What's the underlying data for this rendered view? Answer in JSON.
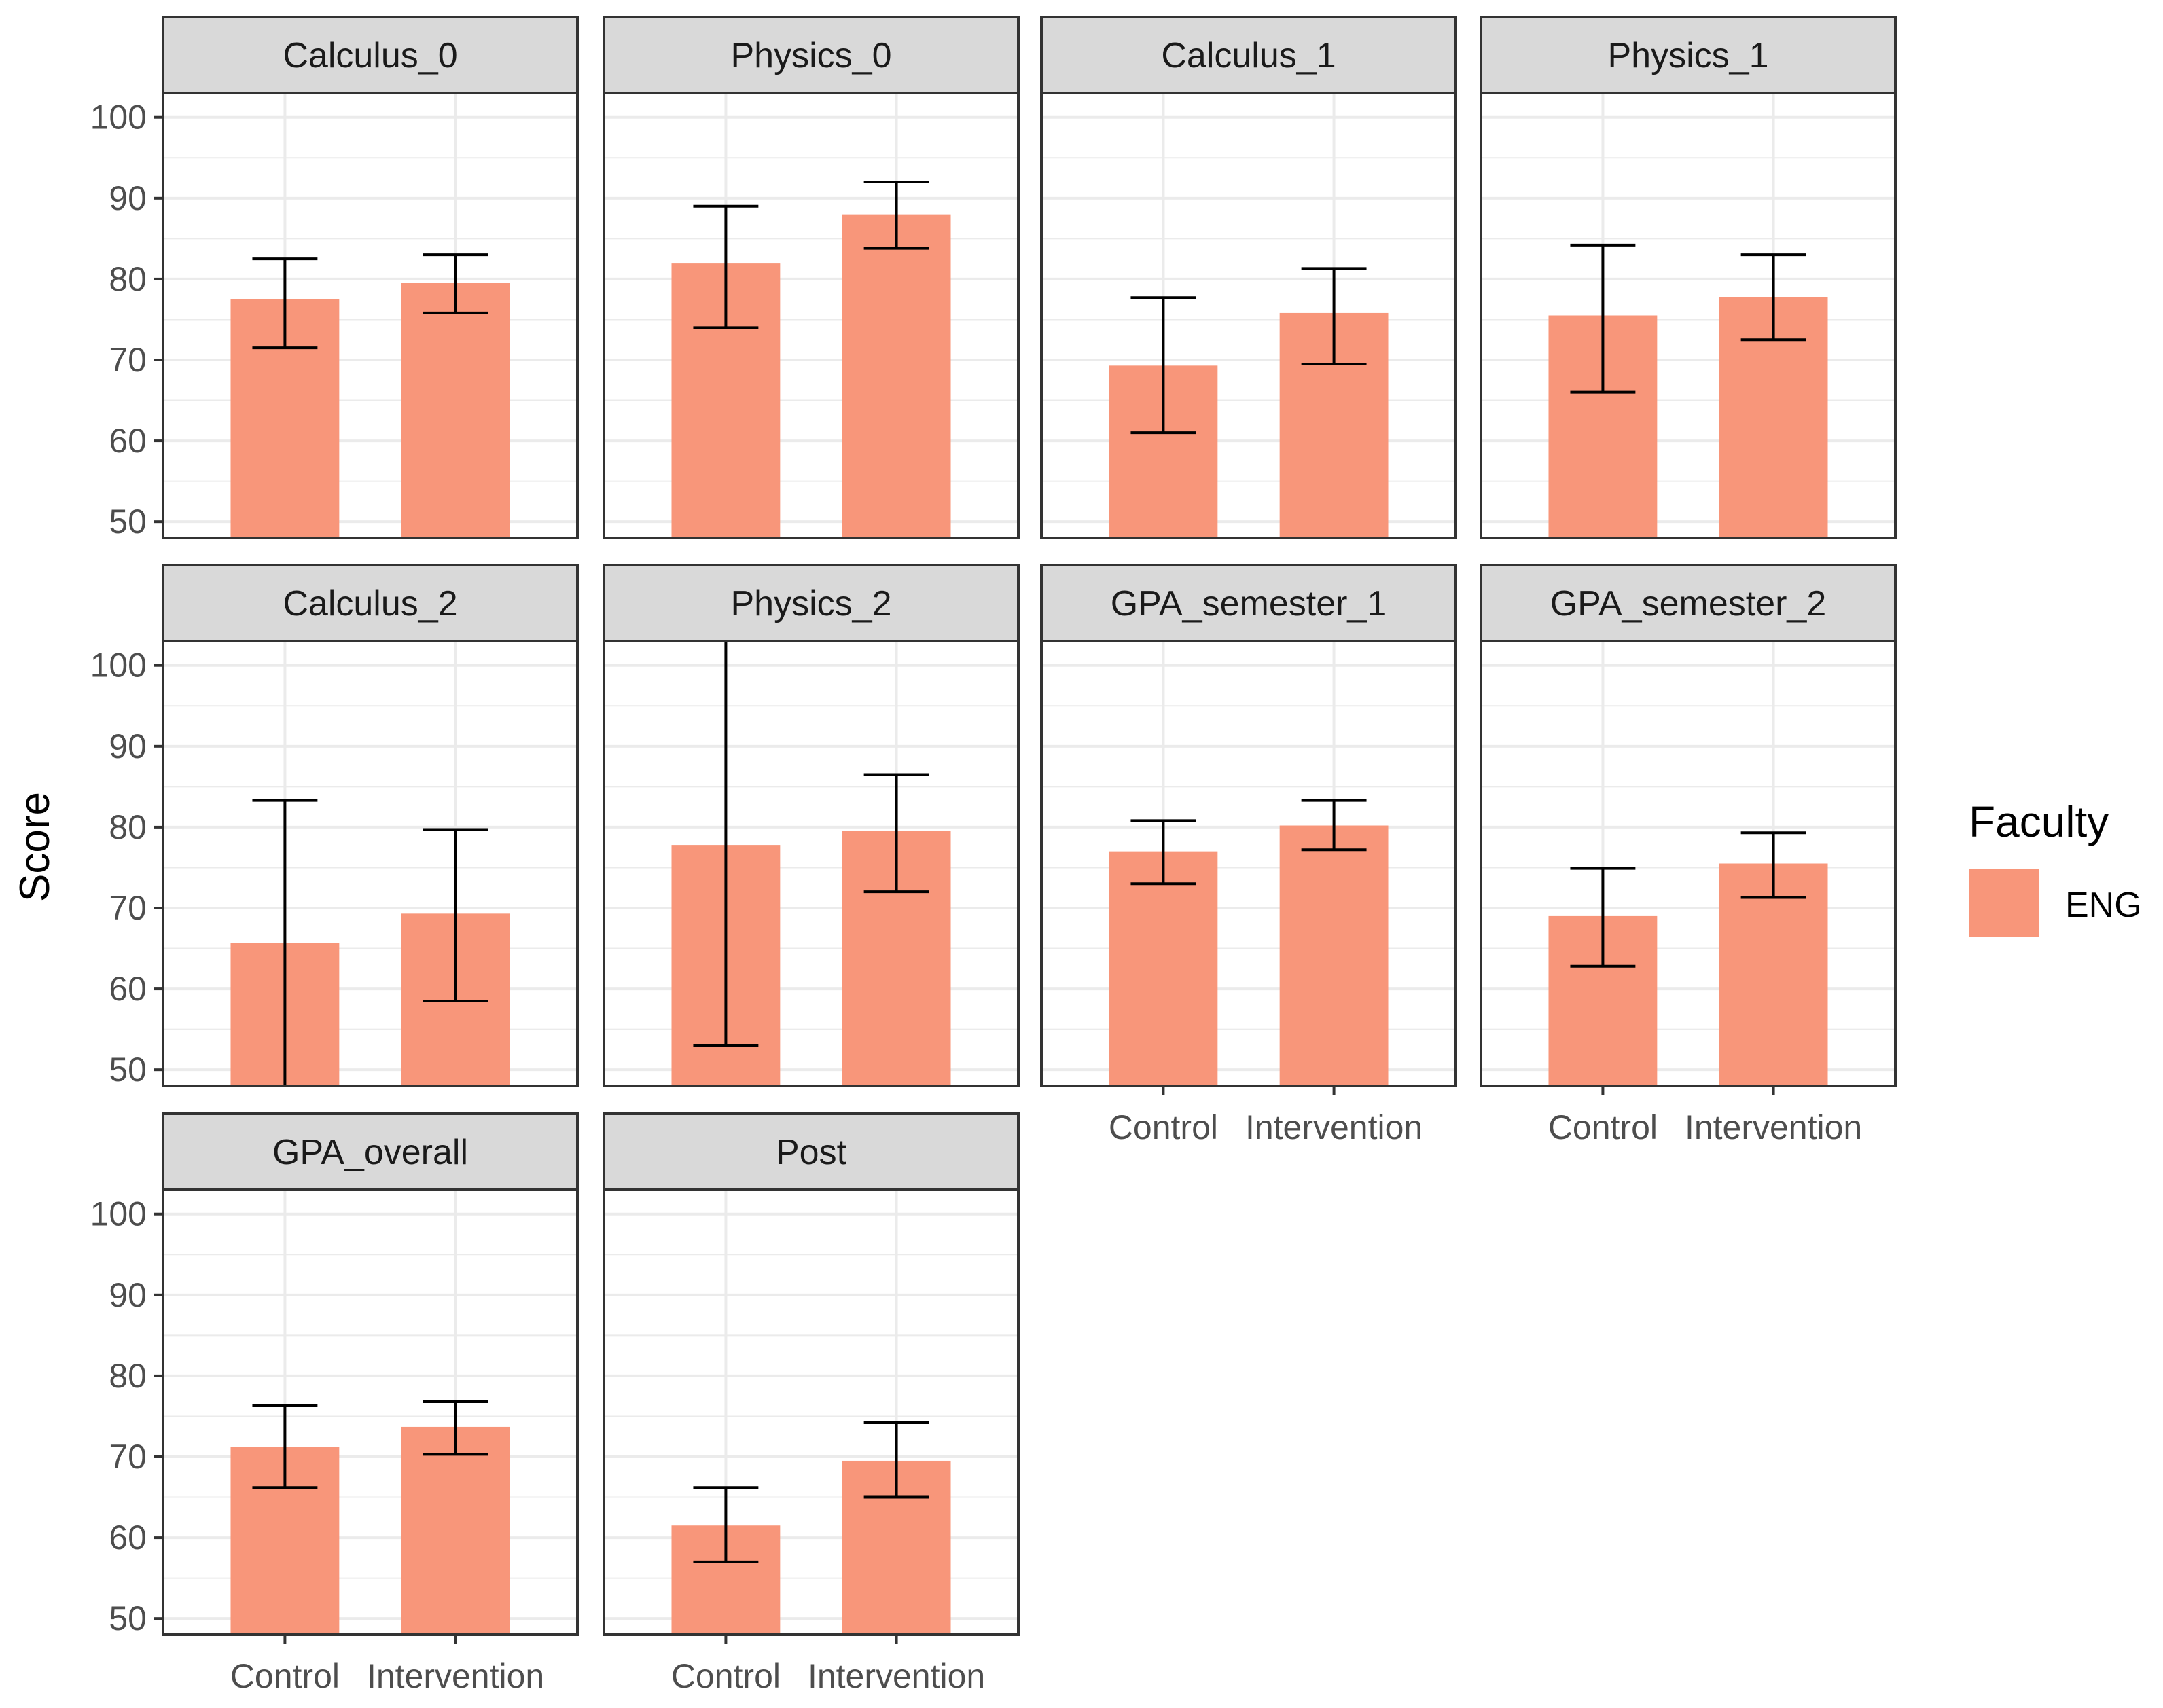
{
  "chart_data": {
    "type": "bar",
    "ylabel": "Score",
    "xlabel": "",
    "ylim": [
      48,
      103
    ],
    "yticks": [
      50,
      60,
      70,
      80,
      90,
      100
    ],
    "categories": [
      "Control",
      "Intervention"
    ],
    "legend": {
      "title": "Faculty",
      "entries": [
        {
          "label": "ENG",
          "color": "#F8967A"
        }
      ],
      "position": "right"
    },
    "colors": {
      "bar": "#F8967A",
      "strip": "#D9D9D9",
      "border": "#333333",
      "grid": "#EBEBEB"
    },
    "panels": [
      {
        "title": "Calculus_0",
        "values": [
          77.5,
          79.5
        ],
        "error_low": [
          71.5,
          75.8
        ],
        "error_high": [
          82.5,
          83.0
        ]
      },
      {
        "title": "Physics_0",
        "values": [
          82.0,
          88.0
        ],
        "error_low": [
          74.0,
          83.8
        ],
        "error_high": [
          89.0,
          92.0
        ]
      },
      {
        "title": "Calculus_1",
        "values": [
          69.3,
          75.8
        ],
        "error_low": [
          61.0,
          69.5
        ],
        "error_high": [
          77.7,
          81.3
        ]
      },
      {
        "title": "Physics_1",
        "values": [
          75.5,
          77.8
        ],
        "error_low": [
          66.0,
          72.5
        ],
        "error_high": [
          84.2,
          83.0
        ]
      },
      {
        "title": "Calculus_2",
        "values": [
          65.7,
          69.3
        ],
        "error_low": [
          48.0,
          58.5
        ],
        "error_high": [
          83.3,
          79.7
        ]
      },
      {
        "title": "Physics_2",
        "values": [
          77.8,
          79.5
        ],
        "error_low": [
          53.0,
          72.0
        ],
        "error_high": [
          103.0,
          86.5
        ]
      },
      {
        "title": "GPA_semester_1",
        "values": [
          77.0,
          80.2
        ],
        "error_low": [
          73.0,
          77.2
        ],
        "error_high": [
          80.8,
          83.3
        ]
      },
      {
        "title": "GPA_semester_2",
        "values": [
          69.0,
          75.5
        ],
        "error_low": [
          62.8,
          71.3
        ],
        "error_high": [
          74.9,
          79.3
        ]
      },
      {
        "title": "GPA_overall",
        "values": [
          71.2,
          73.7
        ],
        "error_low": [
          66.2,
          70.3
        ],
        "error_high": [
          76.3,
          76.8
        ]
      },
      {
        "title": "Post",
        "values": [
          61.5,
          69.5
        ],
        "error_low": [
          57.0,
          65.0
        ],
        "error_high": [
          66.2,
          74.2
        ]
      }
    ]
  }
}
